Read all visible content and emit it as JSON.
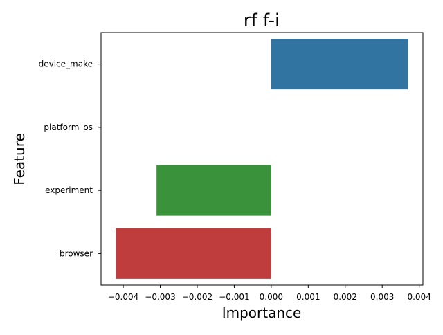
{
  "chart_data": {
    "type": "bar",
    "orientation": "horizontal",
    "title": "rf f-i",
    "xlabel": "Importance",
    "ylabel": "Feature",
    "categories": [
      "device_make",
      "platform_os",
      "experiment",
      "browser"
    ],
    "values": [
      0.0037,
      0.0,
      -0.0031,
      -0.0042
    ],
    "colors": [
      "#3274a1",
      "#e1812c",
      "#3a923a",
      "#c03d3e"
    ],
    "xlim": [
      -0.0046,
      0.0041
    ],
    "xticks": [
      -0.004,
      -0.003,
      -0.002,
      -0.001,
      0.0,
      0.001,
      0.002,
      0.003,
      0.004
    ],
    "xtick_labels": [
      "−0.004",
      "−0.003",
      "−0.002",
      "−0.001",
      "0.000",
      "0.001",
      "0.002",
      "0.003",
      "0.004"
    ],
    "grid": false,
    "legend": false
  }
}
